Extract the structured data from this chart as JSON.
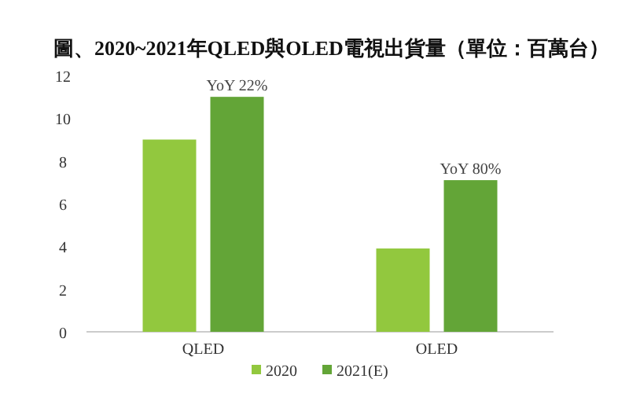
{
  "chart_data": {
    "type": "bar",
    "title": "圖、2020~2021年QLED與OLED電視出貨量（單位：百萬台）",
    "categories": [
      "QLED",
      "OLED"
    ],
    "series": [
      {
        "name": "2020",
        "color": "#92c83e",
        "values": [
          9,
          3.9
        ]
      },
      {
        "name": "2021(E)",
        "color": "#63a537",
        "values": [
          11,
          7.1
        ]
      }
    ],
    "ylim": [
      0,
      12
    ],
    "yticks": [
      0,
      2,
      4,
      6,
      8,
      10,
      12
    ],
    "annotations": [
      {
        "text": "YoY 22%",
        "x": "QLED",
        "y": 11
      },
      {
        "text": "YoY 80%",
        "x": "OLED",
        "y": 7.1
      }
    ],
    "legend": "bottom"
  }
}
